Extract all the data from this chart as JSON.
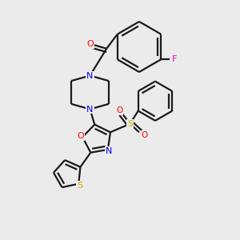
{
  "bg_color": "#ebebeb",
  "bond_color": "#1a1a1a",
  "atom_colors": {
    "O": "#ff0000",
    "N": "#0000ff",
    "S_sulfonyl": "#ccaa00",
    "S_thiophene": "#ccaa00",
    "F": "#ff00cc",
    "C": "#1a1a1a"
  },
  "figsize": [
    3.0,
    3.0
  ],
  "dpi": 100
}
